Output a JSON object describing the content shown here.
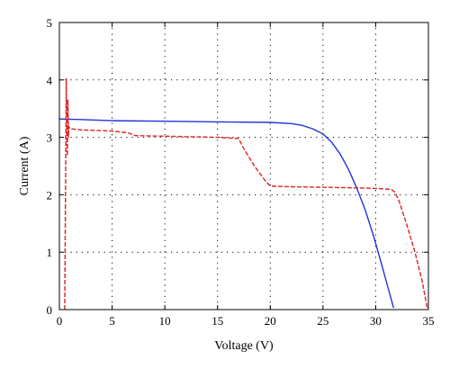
{
  "chart_data": {
    "type": "line",
    "title": "",
    "xlabel": "Voltage (V)",
    "ylabel": "Current (A)",
    "xlim": [
      0,
      35
    ],
    "ylim": [
      0,
      5
    ],
    "xticks": [
      0,
      5,
      10,
      15,
      20,
      25,
      30,
      35
    ],
    "yticks": [
      0,
      1,
      2,
      3,
      4,
      5
    ],
    "grid": true,
    "legend": "none",
    "series": [
      {
        "color": "#2233dd",
        "style": "solid",
        "x": [
          0,
          2,
          5,
          10,
          15,
          20,
          22,
          23,
          24,
          25,
          25.8,
          26.6,
          27.4,
          28.2,
          29,
          29.8,
          30.6,
          31.2,
          31.7
        ],
        "y": [
          3.32,
          3.31,
          3.29,
          3.28,
          3.27,
          3.26,
          3.24,
          3.21,
          3.15,
          3.06,
          2.92,
          2.72,
          2.45,
          2.12,
          1.74,
          1.28,
          0.76,
          0.36,
          0.03
        ]
      },
      {
        "color": "#dd2222",
        "style": "dashed",
        "x": [
          0.5,
          0.6,
          0.65,
          0.7,
          0.75,
          0.8,
          0.85,
          0.9,
          1,
          2,
          5,
          6.5,
          7.2,
          10,
          15,
          17,
          17.5,
          18.5,
          19.5,
          20,
          22,
          25,
          28,
          30,
          31,
          31.5,
          31.8,
          32.2,
          33,
          33.8,
          34.4,
          34.9
        ],
        "y": [
          0.0,
          2.5,
          4.02,
          3.1,
          2.68,
          3.65,
          3.0,
          3.19,
          3.15,
          3.13,
          3.11,
          3.08,
          3.03,
          3.02,
          3.0,
          2.98,
          2.8,
          2.5,
          2.25,
          2.15,
          2.14,
          2.13,
          2.12,
          2.11,
          2.1,
          2.09,
          2.05,
          1.9,
          1.45,
          0.95,
          0.5,
          0.02
        ]
      }
    ]
  }
}
